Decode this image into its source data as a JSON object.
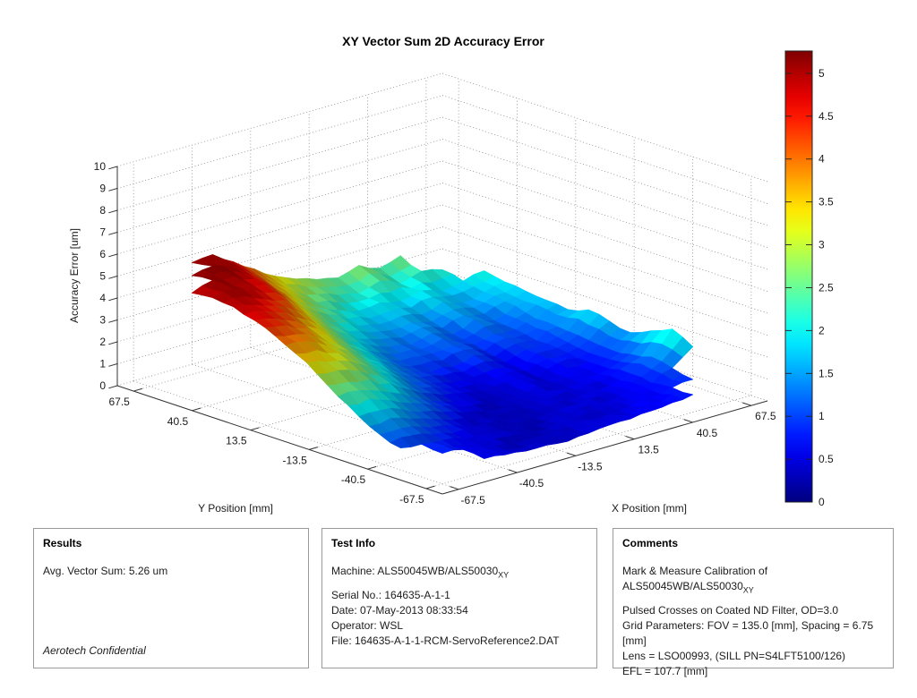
{
  "figure": {
    "title": "XY Vector Sum 2D Accuracy Error"
  },
  "chart_data": {
    "type": "surface",
    "title": "XY Vector Sum 2D Accuracy Error",
    "xlabel": "X Position [mm]",
    "ylabel": "Y Position [mm]",
    "zlabel": "Accuracy Error [um]",
    "xlim": [
      -75,
      75
    ],
    "ylim": [
      -75,
      75
    ],
    "zlim": [
      0,
      10
    ],
    "x_ticks": [
      -67.5,
      -40.5,
      -13.5,
      13.5,
      40.5,
      67.5
    ],
    "y_ticks": [
      -67.5,
      -40.5,
      -13.5,
      13.5,
      40.5,
      67.5
    ],
    "z_ticks": [
      0,
      1,
      2,
      3,
      4,
      5,
      6,
      7,
      8,
      9,
      10
    ],
    "grid": true,
    "colormap": "jet",
    "colorbar": {
      "min": 0,
      "max": 5.26,
      "ticks": [
        0,
        0.5,
        1,
        1.5,
        2,
        2.5,
        3,
        3.5,
        4,
        4.5,
        5
      ]
    },
    "x": [
      -67.5,
      -57.9,
      -48.2,
      -38.6,
      -28.9,
      -19.3,
      -9.6,
      0,
      9.6,
      19.3,
      28.9,
      38.6,
      48.2,
      57.9,
      67.5
    ],
    "y": [
      67.5,
      57.9,
      48.2,
      38.6,
      28.9,
      19.3,
      9.6,
      0,
      -9.6,
      -19.3,
      -28.9,
      -38.6,
      -48.2,
      -57.9,
      -67.5
    ],
    "z": [
      [
        null,
        null,
        5.1,
        5.2,
        4.6,
        4.0,
        3.4,
        3.0,
        2.7,
        2.5,
        2.8,
        2.4,
        2.7,
        null,
        null
      ],
      [
        null,
        5.1,
        5.26,
        5.0,
        4.3,
        3.6,
        3.0,
        2.6,
        2.3,
        2.1,
        2.4,
        2.0,
        2.3,
        2.1,
        null
      ],
      [
        4.9,
        5.2,
        5.1,
        4.7,
        4.0,
        3.2,
        2.6,
        2.2,
        1.9,
        2.0,
        1.8,
        2.0,
        1.7,
        1.9,
        2.1
      ],
      [
        5.0,
        5.1,
        4.8,
        4.4,
        3.6,
        2.8,
        2.2,
        1.8,
        1.6,
        1.7,
        1.5,
        1.8,
        1.5,
        1.7,
        1.9
      ],
      [
        4.9,
        4.7,
        4.4,
        3.9,
        3.1,
        2.4,
        1.8,
        1.5,
        1.3,
        1.5,
        1.2,
        1.5,
        1.3,
        1.6,
        1.8
      ],
      [
        4.6,
        4.4,
        4.0,
        3.4,
        2.7,
        2.0,
        1.5,
        1.2,
        1.1,
        1.3,
        1.0,
        1.3,
        1.1,
        1.4,
        1.7
      ],
      [
        4.2,
        4.0,
        3.6,
        3.0,
        2.3,
        1.7,
        1.2,
        1.0,
        0.9,
        1.1,
        0.8,
        1.1,
        1.0,
        1.3,
        1.6
      ],
      [
        3.7,
        3.6,
        3.2,
        2.6,
        2.0,
        1.4,
        1.0,
        0.8,
        0.7,
        0.9,
        0.6,
        0.9,
        0.9,
        1.2,
        1.9
      ],
      [
        3.1,
        3.0,
        2.7,
        2.2,
        1.6,
        1.1,
        0.8,
        0.6,
        0.5,
        0.7,
        0.5,
        0.8,
        0.8,
        1.1,
        1.7
      ],
      [
        2.4,
        2.4,
        2.1,
        1.7,
        1.2,
        0.8,
        0.6,
        0.4,
        0.4,
        0.6,
        0.4,
        0.7,
        0.7,
        1.0,
        1.5
      ],
      [
        1.8,
        1.8,
        1.6,
        1.2,
        0.9,
        0.6,
        0.4,
        0.3,
        0.4,
        0.5,
        0.4,
        0.6,
        0.7,
        1.1,
        1.9
      ],
      [
        1.3,
        1.3,
        1.1,
        0.9,
        0.6,
        0.4,
        0.3,
        0.3,
        0.4,
        0.4,
        0.5,
        0.5,
        0.8,
        1.3,
        2.3
      ],
      [
        1.0,
        0.9,
        0.8,
        0.6,
        0.5,
        0.4,
        0.3,
        0.3,
        0.4,
        0.5,
        0.4,
        0.6,
        0.7,
        1.1,
        1.8
      ],
      [
        null,
        0.8,
        0.7,
        0.5,
        0.4,
        0.3,
        0.3,
        0.4,
        0.4,
        0.4,
        0.5,
        0.6,
        0.8,
        0.9,
        null
      ],
      [
        null,
        null,
        0.6,
        0.5,
        0.4,
        0.4,
        0.3,
        0.4,
        0.5,
        0.5,
        0.6,
        0.7,
        0.8,
        null,
        null
      ]
    ]
  },
  "panels": {
    "results": {
      "header": "Results",
      "line1": "Avg. Vector Sum: 5.26 um",
      "footer": "Aerotech Confidential"
    },
    "test_info": {
      "header": "Test Info",
      "machine_prefix": "Machine: ALS50045WB/ALS50030",
      "machine_sub": "XY",
      "lines": [
        "Serial No.: 164635-A-1-1",
        "Date: 07-May-2013 08:33:54",
        "Operator: WSL",
        "File: 164635-A-1-1-RCM-ServoReference2.DAT"
      ]
    },
    "comments": {
      "header": "Comments",
      "line1_prefix": "Mark & Measure Calibration of ALS50045WB/ALS50030",
      "line1_sub": "XY",
      "lines": [
        "Pulsed Crosses on Coated ND Filter, OD=3.0",
        "Grid Parameters: FOV = 135.0 [mm], Spacing = 6.75 [mm]",
        "Lens = LSO00993, (SILL PN=S4LFT5100/126)",
        "EFL = 107.7 [mm]"
      ]
    }
  }
}
